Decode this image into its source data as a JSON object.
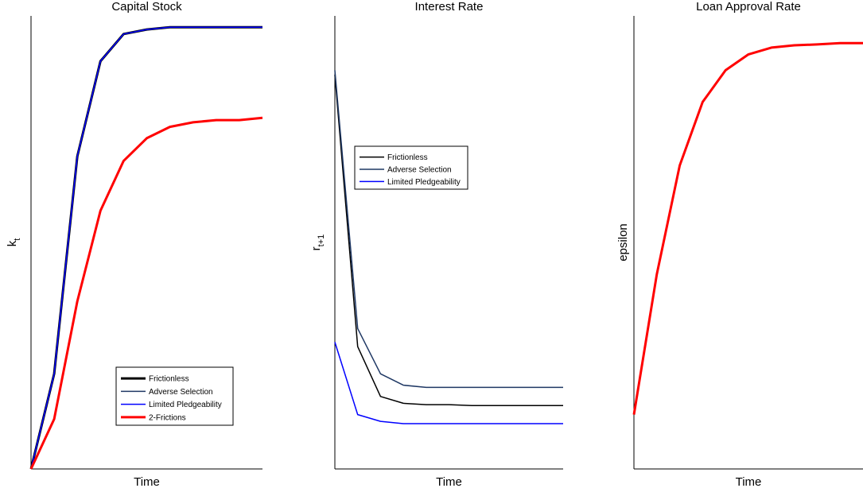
{
  "chart_data": [
    {
      "type": "line",
      "title": "Capital Stock",
      "xlabel": "Time",
      "ylabel": "k",
      "ylabel_subscript": "t",
      "x": [
        1,
        2,
        3,
        4,
        5,
        6,
        7,
        8,
        9,
        10,
        11
      ],
      "xlim": [
        1,
        11
      ],
      "ylim": [
        0,
        1
      ],
      "grid": false,
      "axes": "left-bottom",
      "legend_position": "lower-right",
      "series": [
        {
          "name": "Frictionless",
          "color": "#000000",
          "width": 3,
          "values": [
            0.0,
            0.21,
            0.69,
            0.9,
            0.96,
            0.97,
            0.975,
            0.975,
            0.975,
            0.975,
            0.975
          ]
        },
        {
          "name": "Adverse Selection",
          "color": "#1f3864",
          "width": 1.5,
          "values": [
            0.0,
            0.21,
            0.69,
            0.9,
            0.96,
            0.97,
            0.975,
            0.975,
            0.975,
            0.975,
            0.975
          ]
        },
        {
          "name": "Limited Pledgeability",
          "color": "#0000ff",
          "width": 1.5,
          "values": [
            0.0,
            0.21,
            0.69,
            0.9,
            0.96,
            0.97,
            0.975,
            0.975,
            0.975,
            0.975,
            0.975
          ]
        },
        {
          "name": "2-Frictions",
          "color": "#ff0000",
          "width": 3,
          "values": [
            0.0,
            0.11,
            0.37,
            0.57,
            0.68,
            0.73,
            0.755,
            0.765,
            0.77,
            0.77,
            0.775
          ]
        }
      ]
    },
    {
      "type": "line",
      "title": "Interest Rate",
      "xlabel": "Time",
      "ylabel": "r",
      "ylabel_subscript": "t+1",
      "x": [
        1,
        2,
        3,
        4,
        5,
        6,
        7,
        8,
        9,
        10,
        11
      ],
      "xlim": [
        1,
        11
      ],
      "ylim": [
        0,
        1
      ],
      "grid": false,
      "axes": "left-bottom",
      "legend_position": "upper-left",
      "series": [
        {
          "name": "Frictionless",
          "color": "#000000",
          "width": 1.5,
          "values": [
            0.87,
            0.27,
            0.16,
            0.145,
            0.142,
            0.142,
            0.14,
            0.14,
            0.14,
            0.14,
            0.14
          ]
        },
        {
          "name": "Adverse Selection",
          "color": "#1f3864",
          "width": 1.5,
          "values": [
            0.88,
            0.31,
            0.21,
            0.185,
            0.18,
            0.18,
            0.18,
            0.18,
            0.18,
            0.18,
            0.18
          ]
        },
        {
          "name": "Limited Pledgeability",
          "color": "#0000ff",
          "width": 1.5,
          "values": [
            0.28,
            0.12,
            0.105,
            0.1,
            0.1,
            0.1,
            0.1,
            0.1,
            0.1,
            0.1,
            0.1
          ]
        }
      ]
    },
    {
      "type": "line",
      "title": "Loan Approval Rate",
      "xlabel": "Time",
      "ylabel": "epsilon",
      "x": [
        1,
        2,
        3,
        4,
        5,
        6,
        7,
        8,
        9,
        10,
        11
      ],
      "xlim": [
        1,
        11
      ],
      "ylim": [
        0,
        1
      ],
      "grid": false,
      "axes": "left-bottom",
      "series": [
        {
          "name": "",
          "color": "#ff0000",
          "width": 3,
          "values": [
            0.12,
            0.43,
            0.67,
            0.81,
            0.88,
            0.915,
            0.93,
            0.935,
            0.937,
            0.94,
            0.94
          ]
        }
      ]
    }
  ]
}
